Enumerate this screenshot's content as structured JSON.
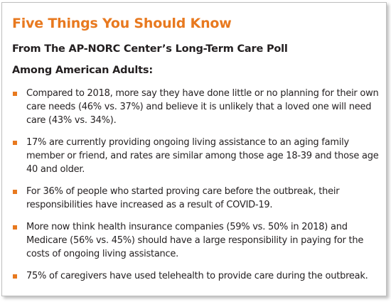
{
  "title": "Five Things You Should Know",
  "subtitle_line1": "From The AP-NORC Center’s Long-Term Care Poll",
  "subtitle_line2": "Among American Adults:",
  "accent_color": "#e8791f",
  "bullets": [
    "Compared to 2018, more say they have done little or no planning for their own care needs (46% vs. 37%) and believe it is unlikely that a loved one will need care (43% vs. 34%).",
    "17% are currently providing ongoing living assistance to an aging family member or friend, and rates are similar among those age 18-39 and those age 40 and older.",
    "For 36% of people who started proving care before the outbreak, their responsibilities have increased as a result of COVID-19.",
    "More now think health insurance companies (59% vs. 50% in 2018) and Medicare (56% vs. 45%) should have a large responsibility in paying for the costs of ongoing living assistance.",
    "75% of caregivers have used telehealth to provide care during the outbreak."
  ]
}
